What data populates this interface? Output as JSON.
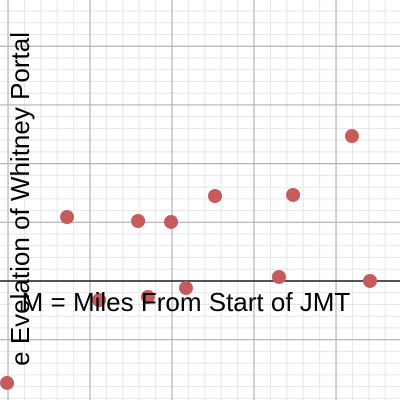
{
  "chart_data": {
    "type": "scatter",
    "x_label": "M = Miles From Start of JMT",
    "y_label": "e Evelation of Whitney Portal",
    "x": [
      4.94,
      8.6,
      10.55,
      12.93,
      13.53,
      14.94,
      15.85,
      17.62,
      21.52,
      22.38,
      25.97,
      27.07
    ],
    "values": [
      -869,
      545,
      -162,
      511,
      -136,
      503,
      -60,
      724,
      34,
      733,
      1235,
      0
    ],
    "color": "#c75b5b",
    "xlim": [
      4.51,
      28.9
    ],
    "xticks": [
      5,
      10,
      15,
      20,
      25
    ],
    "ylim": [
      -1014,
      2394
    ],
    "yticks": [
      -500,
      0,
      500,
      1000,
      1500,
      2000
    ],
    "grid": true,
    "minor_grid": true
  }
}
